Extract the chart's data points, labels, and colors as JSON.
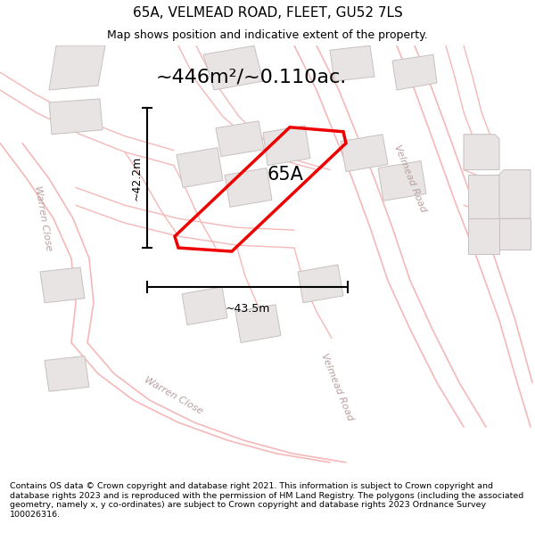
{
  "title": "65A, VELMEAD ROAD, FLEET, GU52 7LS",
  "subtitle": "Map shows position and indicative extent of the property.",
  "area_label": "~446m²/~0.110ac.",
  "plot_label": "65A",
  "dim_horizontal": "~43.5m",
  "dim_vertical": "~42.2m",
  "footer": "Contains OS data © Crown copyright and database right 2021. This information is subject to Crown copyright and database rights 2023 and is reproduced with the permission of HM Land Registry. The polygons (including the associated geometry, namely x, y co-ordinates) are subject to Crown copyright and database rights 2023 Ordnance Survey 100026316.",
  "map_bg": "#ffffff",
  "road_line_color": "#f5b8b8",
  "building_fill": "#e8e4e4",
  "building_edge": "#c8c0c0",
  "plot_color": "#ee0000",
  "road_label_color": "#b8a0a0",
  "dim_line_color": "#000000",
  "label_color": "#000000",
  "title_fontsize": 11,
  "subtitle_fontsize": 9,
  "area_fontsize": 16,
  "plot_fontsize": 15,
  "dim_fontsize": 9,
  "road_label_fontsize": 8,
  "footer_fontsize": 6.8
}
